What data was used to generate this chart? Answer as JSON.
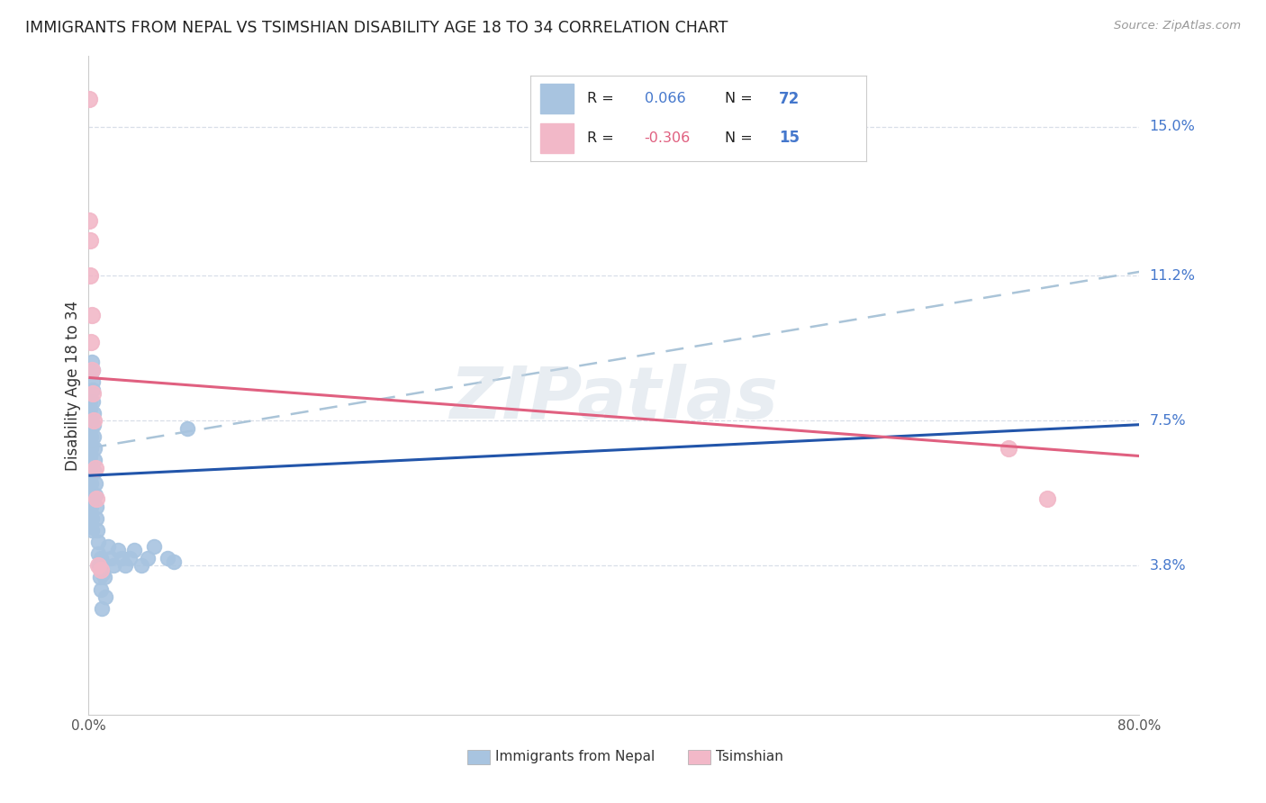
{
  "title": "IMMIGRANTS FROM NEPAL VS TSIMSHIAN DISABILITY AGE 18 TO 34 CORRELATION CHART",
  "source": "Source: ZipAtlas.com",
  "ylabel": "Disability Age 18 to 34",
  "ytick_labels": [
    "15.0%",
    "11.2%",
    "7.5%",
    "3.8%"
  ],
  "ytick_values": [
    0.15,
    0.112,
    0.075,
    0.038
  ],
  "xmin": 0.0,
  "xmax": 0.8,
  "ymin": 0.0,
  "ymax": 0.168,
  "legend_label1": "Immigrants from Nepal",
  "legend_label2": "Tsimshian",
  "r1": "0.066",
  "n1": "72",
  "r2": "-0.306",
  "n2": "15",
  "nepal_line_y_start": 0.061,
  "nepal_line_y_end": 0.074,
  "tsimshian_line_y_start": 0.086,
  "tsimshian_line_y_end": 0.066,
  "dashed_line_y_start": 0.068,
  "dashed_line_y_end": 0.113,
  "watermark": "ZIPatlas",
  "nepal_color": "#a8c4e0",
  "nepal_edge_color": "#7aaac8",
  "nepal_line_color": "#2255aa",
  "tsimshian_color": "#f2b8c8",
  "tsimshian_edge_color": "#d890a8",
  "tsimshian_line_color": "#e06080",
  "dashed_line_color": "#aac4d8",
  "grid_color": "#d8dfe8",
  "right_label_color": "#4477cc",
  "title_color": "#222222",
  "source_color": "#999999",
  "legend_r_color": "#222222",
  "legend_val1_color": "#4477cc",
  "legend_n_color": "#222222",
  "legend_n1_color": "#4477cc",
  "legend_val2_color": "#e06080",
  "legend_n2_color": "#4477cc",
  "nepal_x": [
    0.0004,
    0.0005,
    0.0005,
    0.0006,
    0.0006,
    0.0007,
    0.0007,
    0.0008,
    0.0008,
    0.0009,
    0.0009,
    0.001,
    0.001,
    0.001,
    0.001,
    0.0011,
    0.0011,
    0.0012,
    0.0012,
    0.0013,
    0.0014,
    0.0015,
    0.0015,
    0.0016,
    0.0017,
    0.0018,
    0.0019,
    0.002,
    0.0021,
    0.0022,
    0.0023,
    0.0025,
    0.0027,
    0.0028,
    0.003,
    0.0032,
    0.0034,
    0.0036,
    0.0038,
    0.004,
    0.0042,
    0.0045,
    0.0048,
    0.005,
    0.0055,
    0.0058,
    0.0062,
    0.0065,
    0.007,
    0.0075,
    0.008,
    0.0085,
    0.009,
    0.0095,
    0.01,
    0.011,
    0.012,
    0.013,
    0.015,
    0.017,
    0.019,
    0.022,
    0.025,
    0.028,
    0.031,
    0.035,
    0.04,
    0.045,
    0.05,
    0.06,
    0.065,
    0.075
  ],
  "nepal_y": [
    0.065,
    0.072,
    0.07,
    0.068,
    0.074,
    0.076,
    0.071,
    0.073,
    0.067,
    0.069,
    0.078,
    0.08,
    0.062,
    0.06,
    0.064,
    0.066,
    0.052,
    0.055,
    0.048,
    0.05,
    0.058,
    0.073,
    0.069,
    0.071,
    0.075,
    0.068,
    0.059,
    0.053,
    0.057,
    0.055,
    0.047,
    0.05,
    0.09,
    0.088,
    0.085,
    0.083,
    0.08,
    0.077,
    0.074,
    0.071,
    0.068,
    0.065,
    0.062,
    0.059,
    0.056,
    0.053,
    0.05,
    0.047,
    0.044,
    0.041,
    0.038,
    0.035,
    0.032,
    0.04,
    0.027,
    0.036,
    0.035,
    0.03,
    0.043,
    0.04,
    0.038,
    0.042,
    0.04,
    0.038,
    0.04,
    0.042,
    0.038,
    0.04,
    0.043,
    0.04,
    0.039,
    0.073
  ],
  "tsimshian_x": [
    0.0003,
    0.0007,
    0.001,
    0.0013,
    0.0017,
    0.0022,
    0.0027,
    0.0033,
    0.004,
    0.005,
    0.006,
    0.0075,
    0.009,
    0.7,
    0.73
  ],
  "tsimshian_y": [
    0.157,
    0.126,
    0.121,
    0.112,
    0.095,
    0.102,
    0.088,
    0.082,
    0.075,
    0.063,
    0.055,
    0.038,
    0.037,
    0.068,
    0.055
  ]
}
